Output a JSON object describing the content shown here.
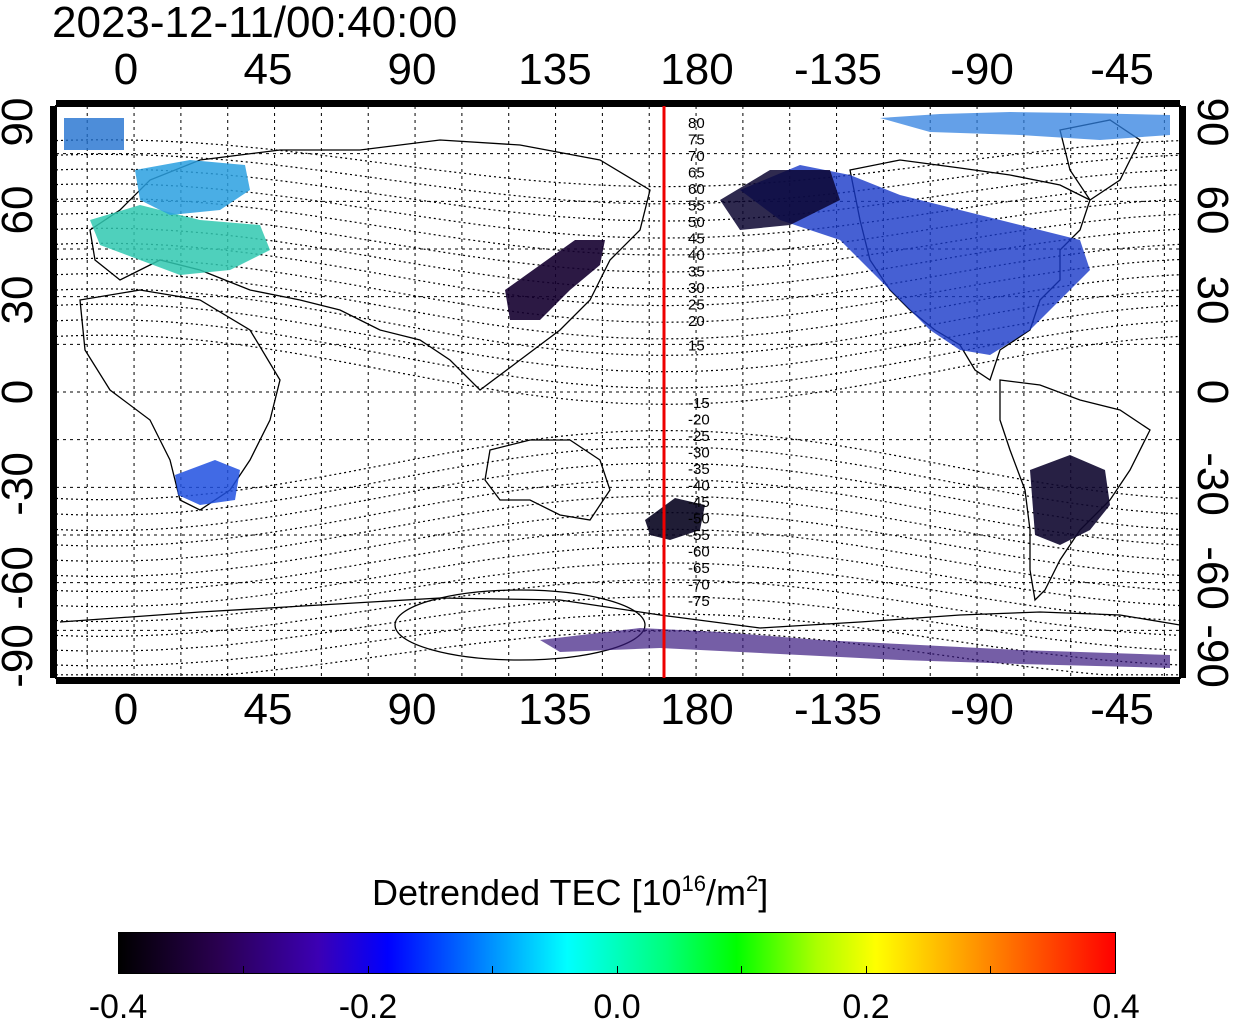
{
  "header": {
    "timestamp": "2023-12-11/00:40:00"
  },
  "map": {
    "projection": "equirectangular",
    "lon_ticks_top": [
      "0",
      "45",
      "90",
      "135",
      "180",
      "-135",
      "-90",
      "-45"
    ],
    "lon_ticks_bottom": [
      "0",
      "45",
      "90",
      "135",
      "180",
      "-135",
      "-90",
      "-45"
    ],
    "lat_ticks_left": [
      "90",
      "60",
      "30",
      "0",
      "-30",
      "-60",
      "-90"
    ],
    "lat_ticks_right": [
      "90",
      "60",
      "30",
      "0",
      "-30",
      "-60",
      "-90"
    ],
    "lon_range": [
      -25,
      335
    ],
    "lat_range": [
      -90,
      90
    ],
    "grid": "dotted",
    "highlight_meridian_lon": 172,
    "highlight_meridian_color": "#ee0000",
    "magnetic_latitude_labels_north": [
      "80",
      "75",
      "70",
      "65",
      "60",
      "55",
      "50",
      "45",
      "40",
      "35",
      "30",
      "25",
      "20",
      "15"
    ],
    "magnetic_latitude_labels_south": [
      "-15",
      "-20",
      "-25",
      "-30",
      "-35",
      "-40",
      "-45",
      "-50",
      "-55",
      "-60",
      "-65",
      "-70",
      "-75"
    ]
  },
  "colorbar": {
    "title_text": "Detrended TEC  [10",
    "title_exp": "16",
    "title_unit": "/m",
    "title_unit_exp": "2",
    "title_close": "]",
    "ticks": [
      "-0.4",
      "-0.2",
      "0.0",
      "0.2",
      "0.4"
    ],
    "range": [
      -0.4,
      0.4
    ],
    "colors": [
      "#000000",
      "#3c00b4",
      "#0000ff",
      "#00ffff",
      "#00ff00",
      "#ffff00",
      "#ff5500",
      "#ff0000"
    ]
  }
}
